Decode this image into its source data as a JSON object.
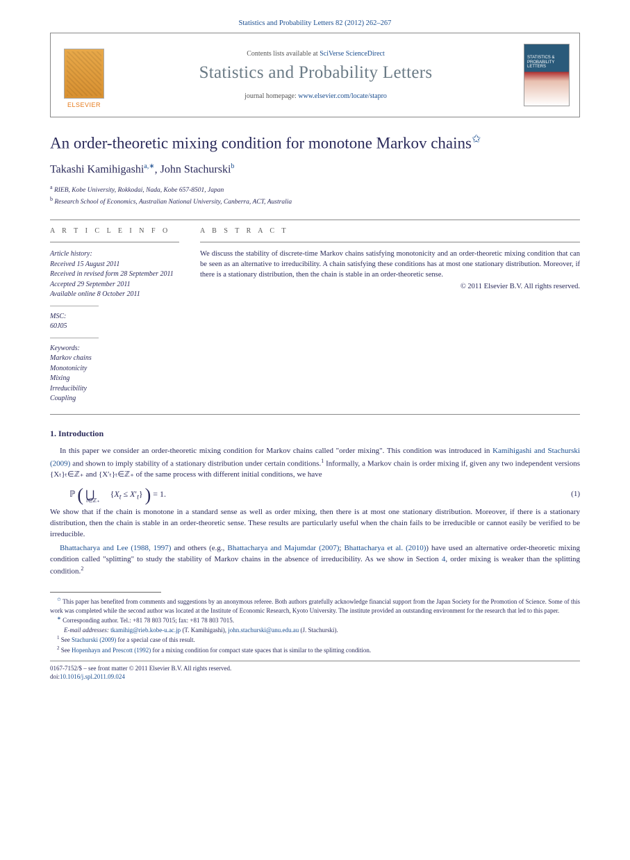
{
  "header": {
    "citation": "Statistics and Probability Letters 82 (2012) 262–267",
    "contents_prefix": "Contents lists available at ",
    "contents_link": "SciVerse ScienceDirect",
    "journal_name": "Statistics and Probability Letters",
    "homepage_prefix": "journal homepage: ",
    "homepage_link": "www.elsevier.com/locate/stapro",
    "publisher_label": "ELSEVIER",
    "cover_title": "STATISTICS & PROBABILITY LETTERS"
  },
  "article": {
    "title": "An order-theoretic mixing condition for monotone Markov chains",
    "star_marker": "✩"
  },
  "authors": {
    "a1_name": "Takashi Kamihigashi",
    "a1_sup": "a,∗",
    "sep": ", ",
    "a2_name": "John Stachurski",
    "a2_sup": "b"
  },
  "affiliations": {
    "a_sup": "a",
    "a_text": " RIEB, Kobe University, Rokkodai, Nada, Kobe 657-8501, Japan",
    "b_sup": "b",
    "b_text": " Research School of Economics, Australian National University, Canberra, ACT, Australia"
  },
  "info": {
    "label": "A R T I C L E   I N F O",
    "history_hdr": "Article history:",
    "received": "Received 15 August 2011",
    "revised": "Received in revised form 28 September 2011",
    "accepted": "Accepted 29 September 2011",
    "online": "Available online 8 October 2011",
    "msc_hdr": "MSC:",
    "msc": "60J05",
    "keywords_hdr": "Keywords:",
    "kw1": "Markov chains",
    "kw2": "Monotonicity",
    "kw3": "Mixing",
    "kw4": "Irreducibility",
    "kw5": "Coupling"
  },
  "abstract": {
    "label": "A B S T R A C T",
    "text": "We discuss the stability of discrete-time Markov chains satisfying monotonicity and an order-theoretic mixing condition that can be seen as an alternative to irreducibility. A chain satisfying these conditions has at most one stationary distribution. Moreover, if there is a stationary distribution, then the chain is stable in an order-theoretic sense.",
    "copyright": "© 2011 Elsevier B.V. All rights reserved."
  },
  "section1": {
    "heading": "1.  Introduction",
    "p1_a": "In this paper we consider an order-theoretic mixing condition for Markov chains called \"order mixing\". This condition was introduced in ",
    "p1_link1": "Kamihigashi and Stachurski (2009)",
    "p1_b": " and shown to imply stability of a stationary distribution under certain conditions.",
    "p1_sup": "1",
    "p1_c": " Informally, a Markov chain is order mixing if, given any two independent versions {Xₜ}ₜ∈ℤ₊ and {X′ₜ}ₜ∈ℤ₊ of the same process with different initial conditions, we have",
    "eq_num": "(1)",
    "p2": "We show that if the chain is monotone in a standard sense as well as order mixing, then there is at most one stationary distribution. Moreover, if there is a stationary distribution, then the chain is stable in an order-theoretic sense. These results are particularly useful when the chain fails to be irreducible or cannot easily be verified to be irreducible.",
    "p3_link1": "Bhattacharya and Lee (1988, 1997)",
    "p3_a": " and others (e.g., ",
    "p3_link2": "Bhattacharya and Majumdar (2007)",
    "p3_b": "; ",
    "p3_link3": "Bhattacharya et al. (2010)",
    "p3_c": ") have used an alternative order-theoretic mixing condition called \"splitting\" to study the stability of Markov chains in the absence of irreducibility. As we show in Section ",
    "p3_link4": "4",
    "p3_d": ", order mixing is weaker than the splitting condition.",
    "p3_sup": "2"
  },
  "footnotes": {
    "star": "✩",
    "star_text": " This paper has benefited from comments and suggestions by an anonymous referee. Both authors gratefully acknowledge financial support from the Japan Society for the Promotion of Science. Some of this work was completed while the second author was located at the Institute of Economic Research, Kyoto University. The institute provided an outstanding environment for the research that led to this paper.",
    "corr_marker": "∗",
    "corr_text": " Corresponding author. Tel.: +81 78 803 7015; fax: +81 78 803 7015.",
    "email_label": "E-mail addresses: ",
    "email1": "tkamihig@rieb.kobe-u.ac.jp",
    "email1_who": " (T. Kamihigashi), ",
    "email2": "john.stachurski@anu.edu.au",
    "email2_who": " (J. Stachurski).",
    "fn1_marker": "1",
    "fn1_a": " See ",
    "fn1_link": "Stachurski (2009)",
    "fn1_b": " for a special case of this result.",
    "fn2_marker": "2",
    "fn2_a": " See ",
    "fn2_link": "Hopenhayn and Prescott (1992)",
    "fn2_b": " for a mixing condition for compact state spaces that is similar to the splitting condition."
  },
  "bottom": {
    "line1": "0167-7152/$ – see front matter © 2011 Elsevier B.V. All rights reserved.",
    "doi_prefix": "doi:",
    "doi": "10.1016/j.spl.2011.09.024"
  },
  "colors": {
    "text": "#2a2a5a",
    "link": "#1a4d8f",
    "orange": "#e67817",
    "journal_gray": "#6a7a85"
  }
}
